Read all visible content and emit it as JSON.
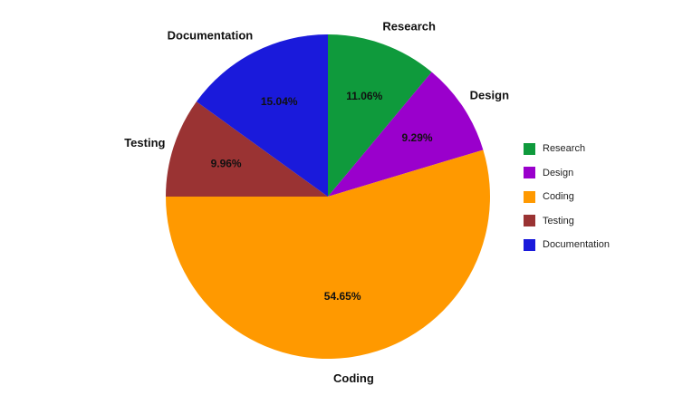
{
  "chart_data": {
    "type": "pie",
    "slices": [
      {
        "label": "Research",
        "value": 11.06,
        "value_label": "11.06%",
        "color": "#0f9a3c"
      },
      {
        "label": "Design",
        "value": 9.29,
        "value_label": "9.29%",
        "color": "#9a00cc"
      },
      {
        "label": "Coding",
        "value": 54.65,
        "value_label": "54.65%",
        "color": "#ff9900"
      },
      {
        "label": "Testing",
        "value": 9.96,
        "value_label": "9.96%",
        "color": "#9a3333"
      },
      {
        "label": "Documentation",
        "value": 15.04,
        "value_label": "15.04%",
        "color": "#1a1adb"
      }
    ],
    "start": "top, clockwise",
    "legend": {
      "placement": "right",
      "entries": [
        "Research",
        "Design",
        "Coding",
        "Testing",
        "Documentation"
      ]
    }
  }
}
